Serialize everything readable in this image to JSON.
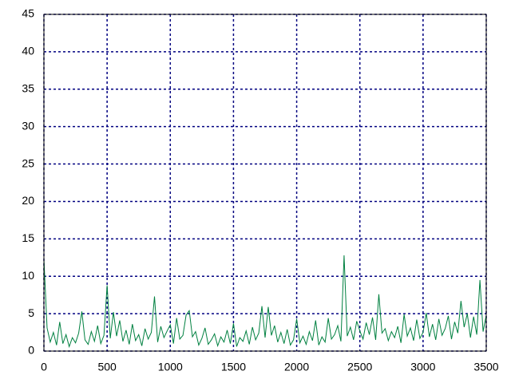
{
  "chart_data": {
    "type": "line",
    "x": [
      0,
      25,
      50,
      75,
      100,
      125,
      150,
      175,
      200,
      225,
      250,
      275,
      300,
      325,
      350,
      375,
      400,
      425,
      450,
      475,
      500,
      525,
      550,
      575,
      600,
      625,
      650,
      675,
      700,
      725,
      750,
      775,
      800,
      825,
      850,
      875,
      900,
      925,
      950,
      975,
      1000,
      1025,
      1050,
      1075,
      1100,
      1125,
      1150,
      1175,
      1200,
      1225,
      1250,
      1275,
      1300,
      1325,
      1350,
      1375,
      1400,
      1425,
      1450,
      1475,
      1500,
      1525,
      1550,
      1575,
      1600,
      1625,
      1650,
      1675,
      1700,
      1725,
      1750,
      1775,
      1800,
      1825,
      1850,
      1875,
      1900,
      1925,
      1950,
      1975,
      2000,
      2025,
      2050,
      2075,
      2100,
      2125,
      2150,
      2175,
      2200,
      2225,
      2250,
      2275,
      2300,
      2325,
      2350,
      2375,
      2400,
      2425,
      2450,
      2475,
      2500,
      2525,
      2550,
      2575,
      2600,
      2625,
      2650,
      2675,
      2700,
      2725,
      2750,
      2775,
      2800,
      2825,
      2850,
      2875,
      2900,
      2925,
      2950,
      2975,
      3000,
      3025,
      3050,
      3075,
      3100,
      3125,
      3150,
      3175,
      3200,
      3225,
      3250,
      3275,
      3300,
      3325,
      3350,
      3375,
      3400,
      3425,
      3450,
      3475,
      3500
    ],
    "series": [
      {
        "color": "#008040",
        "values": [
          12.3,
          3.1,
          1.2,
          2.5,
          0.8,
          3.9,
          1.0,
          2.2,
          0.6,
          1.8,
          1.1,
          2.4,
          5.3,
          1.5,
          0.9,
          2.6,
          1.3,
          3.4,
          1.0,
          2.1,
          8.8,
          1.7,
          5.2,
          2.0,
          4.1,
          1.3,
          2.8,
          0.9,
          3.6,
          1.4,
          2.2,
          0.7,
          3.0,
          1.6,
          2.5,
          7.3,
          1.2,
          3.3,
          1.8,
          2.7,
          3.5,
          1.0,
          4.4,
          1.6,
          2.1,
          4.8,
          5.4,
          1.9,
          2.6,
          0.8,
          1.7,
          3.1,
          0.9,
          1.5,
          2.3,
          0.7,
          1.9,
          1.2,
          2.8,
          1.0,
          3.7,
          0.6,
          1.8,
          1.3,
          2.7,
          0.9,
          3.2,
          1.5,
          2.4,
          6.0,
          1.8,
          5.9,
          2.1,
          3.4,
          1.2,
          2.5,
          1.0,
          2.9,
          0.8,
          1.5,
          4.3,
          1.1,
          2.0,
          0.9,
          2.6,
          1.4,
          4.1,
          0.8,
          1.9,
          1.2,
          4.4,
          1.6,
          2.2,
          3.4,
          1.3,
          12.8,
          2.0,
          3.2,
          1.5,
          4.0,
          2.7,
          1.6,
          3.8,
          2.2,
          4.5,
          1.5,
          7.6,
          2.4,
          3.0,
          1.4,
          2.6,
          1.8,
          3.3,
          1.1,
          4.9,
          2.0,
          3.1,
          1.4,
          4.2,
          1.7,
          2.5,
          5.1,
          1.9,
          3.6,
          1.5,
          4.3,
          2.1,
          3.0,
          4.7,
          1.6,
          3.9,
          2.4,
          6.7,
          3.2,
          5.0,
          1.8,
          4.6,
          2.2,
          9.5,
          2.6,
          4.8
        ]
      }
    ],
    "xlim": [
      0,
      3500
    ],
    "xticks": [
      0,
      500,
      1000,
      1500,
      2000,
      2500,
      3000,
      3500
    ],
    "ylim": [
      0,
      45
    ],
    "yticks": [
      0,
      5,
      10,
      15,
      20,
      25,
      30,
      35,
      40,
      45
    ],
    "grid": true,
    "grid_color": "#000080"
  }
}
